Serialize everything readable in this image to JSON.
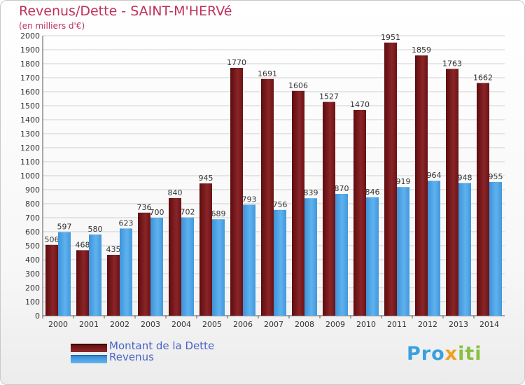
{
  "chart_data": {
    "type": "bar",
    "title": "Revenus/Dette - SAINT-M'HERVé",
    "subtitle": "(en milliers d'€)",
    "categories": [
      "2000",
      "2001",
      "2002",
      "2003",
      "2004",
      "2005",
      "2006",
      "2007",
      "2008",
      "2009",
      "2010",
      "2011",
      "2012",
      "2013",
      "2014"
    ],
    "series": [
      {
        "name": "Montant de la Dette",
        "color": "#7a1a1c",
        "values": [
          506,
          468,
          435,
          736,
          840,
          945,
          1770,
          1691,
          1606,
          1527,
          1470,
          1951,
          1859,
          1763,
          1662
        ]
      },
      {
        "name": "Revenus",
        "color": "#4ba3e6",
        "values": [
          597,
          580,
          623,
          700,
          702,
          689,
          793,
          756,
          839,
          870,
          846,
          919,
          964,
          948,
          955
        ]
      }
    ],
    "ylim": [
      0,
      2000
    ],
    "yticks": [
      0,
      100,
      200,
      300,
      400,
      500,
      600,
      700,
      800,
      900,
      1000,
      1100,
      1200,
      1300,
      1400,
      1500,
      1600,
      1700,
      1800,
      1900,
      2000
    ],
    "grid": true,
    "legend": "bottom-left"
  },
  "logo": {
    "part1": "Pro",
    "part2": "x",
    "part3": "iti"
  }
}
